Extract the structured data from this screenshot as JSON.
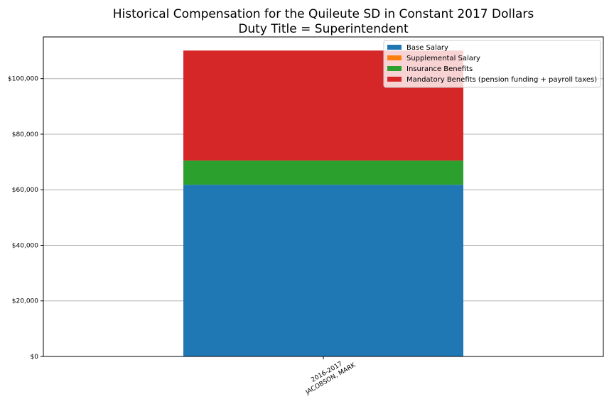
{
  "chart_data": {
    "type": "bar",
    "stacked": true,
    "title": "Historical Compensation for the Quileute SD in Constant 2017 Dollars",
    "subtitle": "Duty Title = Superintendent",
    "categories": [
      [
        "2016-2017",
        "JACOBSON, MARK"
      ]
    ],
    "series": [
      {
        "name": "Base Salary",
        "values": [
          61800
        ],
        "color": "#1f77b4"
      },
      {
        "name": "Supplemental Salary",
        "values": [
          0
        ],
        "color": "#ff7f0e"
      },
      {
        "name": "Insurance Benefits",
        "values": [
          8700
        ],
        "color": "#2ca02c"
      },
      {
        "name": "Mandatory Benefits (pension funding + payroll taxes)",
        "values": [
          39600
        ],
        "color": "#d62728"
      }
    ],
    "ylim": [
      0,
      115000
    ],
    "yticks": [
      0,
      20000,
      40000,
      60000,
      80000,
      100000
    ],
    "ytick_labels": [
      "$0",
      "$20,000",
      "$40,000",
      "$60,000",
      "$80,000",
      "$100,000"
    ],
    "grid": "y",
    "legend_position": "top-right"
  }
}
